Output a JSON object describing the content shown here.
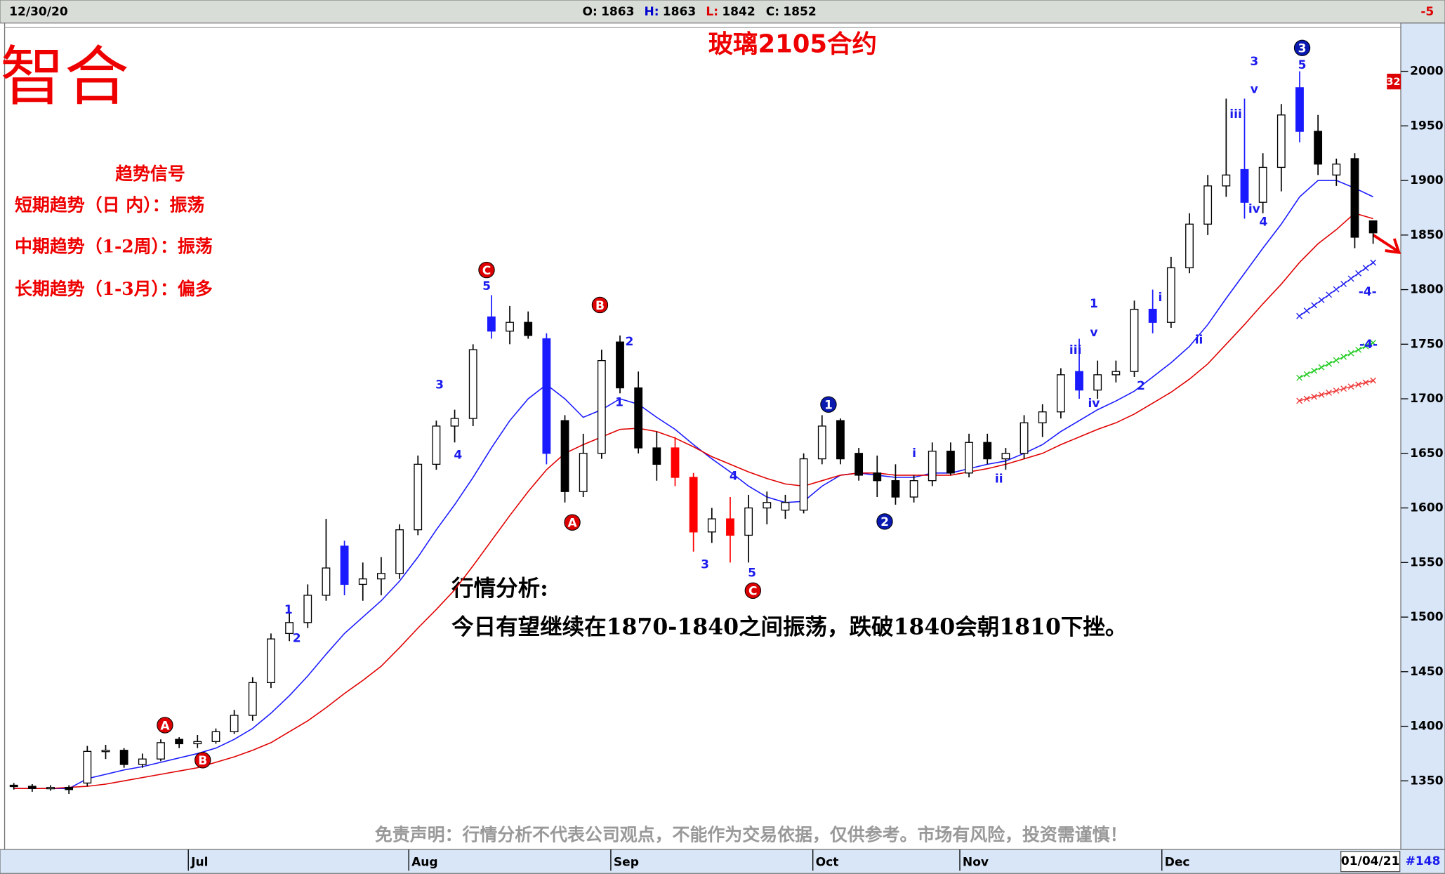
{
  "header": {
    "date": "12/30/20",
    "ohlc": [
      {
        "label": "O:",
        "value": 1863,
        "color": "#000"
      },
      {
        "label": "H:",
        "value": 1863,
        "color": "#0000cc"
      },
      {
        "label": "L:",
        "value": 1842,
        "color": "#d00"
      },
      {
        "label": "C:",
        "value": 1852,
        "color": "#000"
      }
    ],
    "change": "-5"
  },
  "logo": "智合",
  "trend_signals": {
    "title": "趋势信号",
    "lines": [
      "短期趋势（日 内）：振荡",
      "中期趋势（1-2周）：振荡",
      "长期趋势（1-3月）：偏多"
    ]
  },
  "analysis": {
    "title": "行情分析:",
    "text": "今日有望继续在1870-1840之间振荡，跌破1840会朝1810下挫。"
  },
  "disclaimer": "免责声明：行情分析不代表公司观点，不能作为交易依据，仅供参考。市场有风险，投资需谨慎！",
  "footer": {
    "date": "01/04/21",
    "bar": "#148"
  },
  "side_marker": "32",
  "chart_data": {
    "type": "candlestick",
    "title": "玻璃2105合约",
    "categories": [
      null,
      null,
      null,
      null,
      null,
      null,
      null,
      null,
      null,
      null,
      "Jul",
      null,
      null,
      null,
      null,
      null,
      null,
      null,
      null,
      null,
      null,
      null,
      "Aug",
      null,
      null,
      null,
      null,
      null,
      null,
      null,
      null,
      null,
      null,
      "Sep",
      null,
      null,
      null,
      null,
      null,
      null,
      null,
      null,
      null,
      null,
      "Oct",
      null,
      null,
      null,
      null,
      null,
      null,
      null,
      "Nov",
      null,
      null,
      null,
      null,
      null,
      null,
      null,
      null,
      null,
      null,
      "Dec",
      null,
      null,
      null,
      null,
      null,
      null,
      null,
      null,
      null,
      null,
      null
    ],
    "open": [
      1346,
      1345,
      1343,
      1344,
      1348,
      1377,
      1378,
      1365,
      1370,
      1388,
      1384,
      1386,
      1395,
      1410,
      1440,
      1485,
      1495,
      1520,
      1565,
      1530,
      1535,
      1540,
      1580,
      1640,
      1675,
      1682,
      1775,
      1762,
      1770,
      1755,
      1680,
      1615,
      1650,
      1752,
      1710,
      1655,
      1655,
      1628,
      1578,
      1590,
      1575,
      1600,
      1605,
      1598,
      1645,
      1680,
      1650,
      1632,
      1625,
      1610,
      1625,
      1652,
      1632,
      1660,
      1645,
      1650,
      1678,
      1688,
      1725,
      1708,
      1722,
      1725,
      1782,
      1770,
      1820,
      1860,
      1895,
      1910,
      1880,
      1912,
      1985,
      1945,
      1905,
      1920,
      1863
    ],
    "high": [
      1348,
      1347,
      1346,
      1346,
      1382,
      1383,
      1380,
      1375,
      1388,
      1390,
      1392,
      1398,
      1415,
      1445,
      1485,
      1505,
      1530,
      1590,
      1570,
      1550,
      1555,
      1585,
      1648,
      1680,
      1690,
      1750,
      1795,
      1785,
      1780,
      1760,
      1685,
      1668,
      1745,
      1758,
      1725,
      1670,
      1665,
      1632,
      1600,
      1610,
      1612,
      1615,
      1612,
      1650,
      1685,
      1682,
      1655,
      1648,
      1640,
      1630,
      1660,
      1660,
      1668,
      1668,
      1655,
      1685,
      1695,
      1728,
      1755,
      1735,
      1735,
      1790,
      1800,
      1830,
      1870,
      1905,
      1975,
      1975,
      1925,
      1970,
      2000,
      1960,
      1920,
      1925,
      1863
    ],
    "low": [
      1342,
      1340,
      1341,
      1338,
      1345,
      1370,
      1362,
      1362,
      1368,
      1380,
      1380,
      1384,
      1393,
      1405,
      1435,
      1478,
      1490,
      1515,
      1520,
      1515,
      1520,
      1535,
      1575,
      1635,
      1660,
      1675,
      1755,
      1750,
      1755,
      1640,
      1605,
      1610,
      1645,
      1705,
      1650,
      1625,
      1620,
      1560,
      1568,
      1550,
      1550,
      1585,
      1590,
      1595,
      1640,
      1640,
      1625,
      1610,
      1603,
      1605,
      1620,
      1630,
      1628,
      1640,
      1635,
      1645,
      1665,
      1682,
      1700,
      1700,
      1715,
      1720,
      1760,
      1765,
      1815,
      1850,
      1885,
      1865,
      1870,
      1890,
      1935,
      1905,
      1895,
      1838,
      1842
    ],
    "close": [
      1345,
      1343,
      1344,
      1342,
      1377,
      1378,
      1365,
      1370,
      1385,
      1384,
      1386,
      1395,
      1410,
      1440,
      1480,
      1495,
      1520,
      1545,
      1530,
      1535,
      1540,
      1580,
      1640,
      1675,
      1682,
      1745,
      1762,
      1770,
      1758,
      1650,
      1615,
      1650,
      1735,
      1710,
      1655,
      1640,
      1628,
      1578,
      1590,
      1575,
      1600,
      1605,
      1598,
      1645,
      1675,
      1645,
      1630,
      1625,
      1610,
      1625,
      1652,
      1632,
      1660,
      1645,
      1650,
      1678,
      1688,
      1722,
      1708,
      1722,
      1725,
      1782,
      1770,
      1820,
      1860,
      1895,
      1905,
      1880,
      1912,
      1960,
      1945,
      1915,
      1915,
      1848,
      1852
    ],
    "colors": [
      "#000",
      "#000",
      "#fff",
      "#000",
      "#fff",
      "#fff",
      "#000",
      "#fff",
      "#fff",
      "#000",
      "#fff",
      "#fff",
      "#fff",
      "#fff",
      "#fff",
      "#fff",
      "#fff",
      "#fff",
      "#1a1aff",
      "#fff",
      "#fff",
      "#fff",
      "#fff",
      "#fff",
      "#fff",
      "#fff",
      "#1a1aff",
      "#fff",
      "#000",
      "#1a1aff",
      "#000",
      "#fff",
      "#fff",
      "#000",
      "#000",
      "#000",
      "#ff0000",
      "#ff0000",
      "#fff",
      "#ff0000",
      "#fff",
      "#fff",
      "#fff",
      "#fff",
      "#fff",
      "#000",
      "#000",
      "#000",
      "#000",
      "#fff",
      "#fff",
      "#000",
      "#fff",
      "#000",
      "#fff",
      "#fff",
      "#fff",
      "#fff",
      "#1a1aff",
      "#fff",
      "#fff",
      "#fff",
      "#1a1aff",
      "#fff",
      "#fff",
      "#fff",
      "#fff",
      "#1a1aff",
      "#fff",
      "#fff",
      "#1a1aff",
      "#000",
      "#fff",
      "#000",
      "#000"
    ],
    "lines": [
      {
        "color": "#1a1aff",
        "values": [
          1343,
          1343,
          1343,
          1343,
          1352,
          1356,
          1360,
          1363,
          1367,
          1371,
          1375,
          1380,
          1388,
          1398,
          1412,
          1428,
          1446,
          1466,
          1485,
          1500,
          1515,
          1533,
          1555,
          1580,
          1603,
          1628,
          1655,
          1680,
          1700,
          1713,
          1700,
          1683,
          1690,
          1700,
          1695,
          1683,
          1672,
          1658,
          1645,
          1633,
          1620,
          1610,
          1605,
          1606,
          1620,
          1630,
          1632,
          1630,
          1628,
          1628,
          1632,
          1632,
          1636,
          1640,
          1643,
          1650,
          1658,
          1670,
          1680,
          1690,
          1698,
          1707,
          1720,
          1733,
          1748,
          1768,
          1792,
          1815,
          1838,
          1860,
          1885,
          1900,
          1900,
          1893,
          1885
        ]
      },
      {
        "color": "#e00000",
        "values": [
          1343,
          1343,
          1343,
          1344,
          1345,
          1347,
          1350,
          1353,
          1356,
          1359,
          1362,
          1367,
          1372,
          1378,
          1385,
          1395,
          1405,
          1417,
          1430,
          1442,
          1455,
          1472,
          1490,
          1507,
          1525,
          1547,
          1570,
          1593,
          1615,
          1635,
          1650,
          1658,
          1665,
          1672,
          1673,
          1670,
          1664,
          1656,
          1647,
          1640,
          1633,
          1627,
          1622,
          1620,
          1625,
          1630,
          1632,
          1632,
          1630,
          1630,
          1630,
          1630,
          1633,
          1636,
          1640,
          1645,
          1650,
          1658,
          1665,
          1672,
          1678,
          1686,
          1696,
          1706,
          1718,
          1732,
          1750,
          1768,
          1787,
          1805,
          1825,
          1842,
          1855,
          1870,
          1865
        ]
      }
    ],
    "ylim": [
      1293,
      2040
    ],
    "yticks": [
      1350,
      1400,
      1450,
      1500,
      1550,
      1600,
      1650,
      1700,
      1750,
      1800,
      1850,
      1900,
      1950,
      2000
    ],
    "annotations": [
      {
        "text": "A",
        "color": "#d00",
        "circle": true
      },
      {
        "text": "B",
        "color": "#d00",
        "circle": true
      },
      {
        "text": "C",
        "color": "#d00",
        "circle": true
      },
      {
        "text": "B",
        "color": "#d00",
        "circle": true
      },
      {
        "text": "A",
        "color": "#d00",
        "circle": true
      },
      {
        "text": "C",
        "color": "#d00",
        "circle": true
      },
      {
        "text": "1",
        "color": "#0a1ab0",
        "circle": true
      },
      {
        "text": "2",
        "color": "#0a1ab0",
        "circle": true
      },
      {
        "text": "3",
        "color": "#0a1ab0",
        "circle": true
      },
      {
        "text": "5",
        "color": "#1a1aee",
        "circle": false
      },
      {
        "text": "3",
        "color": "#1a1aee",
        "circle": false
      },
      {
        "text": "4",
        "color": "#1a1aee",
        "circle": false
      },
      {
        "text": "1",
        "color": "#1a1aee",
        "circle": false
      },
      {
        "text": "2",
        "color": "#1a1aee",
        "circle": false
      },
      {
        "text": "2",
        "color": "#1a1aee",
        "circle": false
      },
      {
        "text": "1",
        "color": "#1a1aee",
        "circle": false
      },
      {
        "text": "3",
        "color": "#1a1aee",
        "circle": false
      },
      {
        "text": "4",
        "color": "#1a1aee",
        "circle": false
      },
      {
        "text": "5",
        "color": "#1a1aee",
        "circle": false
      },
      {
        "text": "i",
        "color": "#1a1aee",
        "circle": false
      },
      {
        "text": "ii",
        "color": "#1a1aee",
        "circle": false
      },
      {
        "text": "1",
        "color": "#1a1aee",
        "circle": false
      },
      {
        "text": "v",
        "color": "#1a1aee",
        "circle": false
      },
      {
        "text": "iii",
        "color": "#1a1aee",
        "circle": false
      },
      {
        "text": "iv",
        "color": "#1a1aee",
        "circle": false
      },
      {
        "text": "2",
        "color": "#1a1aee",
        "circle": false
      },
      {
        "text": "i",
        "color": "#1a1aee",
        "circle": false
      },
      {
        "text": "ii",
        "color": "#1a1aee",
        "circle": false
      },
      {
        "text": "iii",
        "color": "#1a1aee",
        "circle": false
      },
      {
        "text": "3",
        "color": "#1a1aee",
        "circle": false
      },
      {
        "text": "v",
        "color": "#1a1aee",
        "circle": false
      },
      {
        "text": "iv",
        "color": "#1a1aee",
        "circle": false
      },
      {
        "text": "4",
        "color": "#1a1aee",
        "circle": false
      },
      {
        "text": "5",
        "color": "#1a1aee",
        "circle": false
      },
      {
        "text": "-4-",
        "color": "#1a1aee",
        "circle": false
      },
      {
        "text": "-4-",
        "color": "#1a1aee",
        "circle": false
      }
    ]
  }
}
